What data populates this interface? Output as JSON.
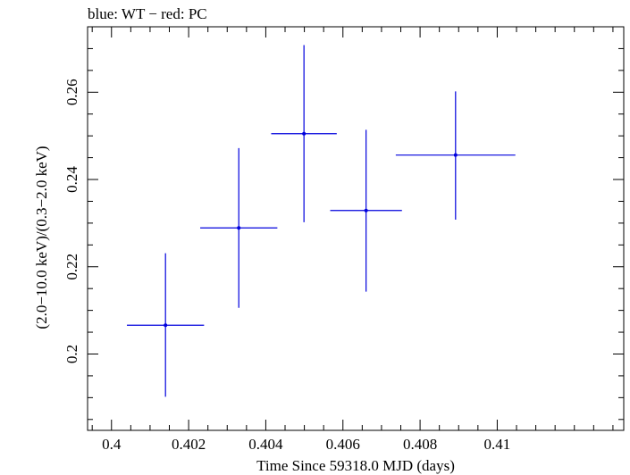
{
  "chart_data": {
    "type": "scatter",
    "title": "blue: WT − red: PC",
    "xlabel": "Time Since 59318.0 MJD (days)",
    "ylabel": "(2.0−10.0 keV)/(0.3−2.0 keV)",
    "xlim": [
      0.39938,
      0.41328
    ],
    "ylim": [
      0.1825,
      0.275
    ],
    "x_ticks": [
      0.4,
      0.402,
      0.404,
      0.406,
      0.408,
      0.41
    ],
    "x_tick_labels": [
      "0.4",
      "0.402",
      "0.404",
      "0.406",
      "0.408",
      "0.41"
    ],
    "x_minor_step": 0.0005,
    "y_ticks": [
      0.2,
      0.22,
      0.24,
      0.26
    ],
    "y_tick_labels": [
      "0.2",
      "0.22",
      "0.24",
      "0.26"
    ],
    "y_minor_step": 0.005,
    "grid": false,
    "series": [
      {
        "color": "#0000dd",
        "points": [
          {
            "x": 0.4014,
            "y": 0.2066,
            "xerr": 0.001,
            "ylo": 0.1902,
            "yhi": 0.2231
          },
          {
            "x": 0.4033,
            "y": 0.2289,
            "xerr": 0.001,
            "ylo": 0.2106,
            "yhi": 0.2472
          },
          {
            "x": 0.40499,
            "y": 0.2505,
            "xerr": 0.00085,
            "ylo": 0.2302,
            "yhi": 0.2708
          },
          {
            "x": 0.4066,
            "y": 0.2329,
            "xerr": 0.00093,
            "ylo": 0.2143,
            "yhi": 0.2514
          },
          {
            "x": 0.40892,
            "y": 0.2456,
            "xerr": 0.00155,
            "ylo": 0.2308,
            "yhi": 0.2602
          }
        ]
      }
    ]
  }
}
